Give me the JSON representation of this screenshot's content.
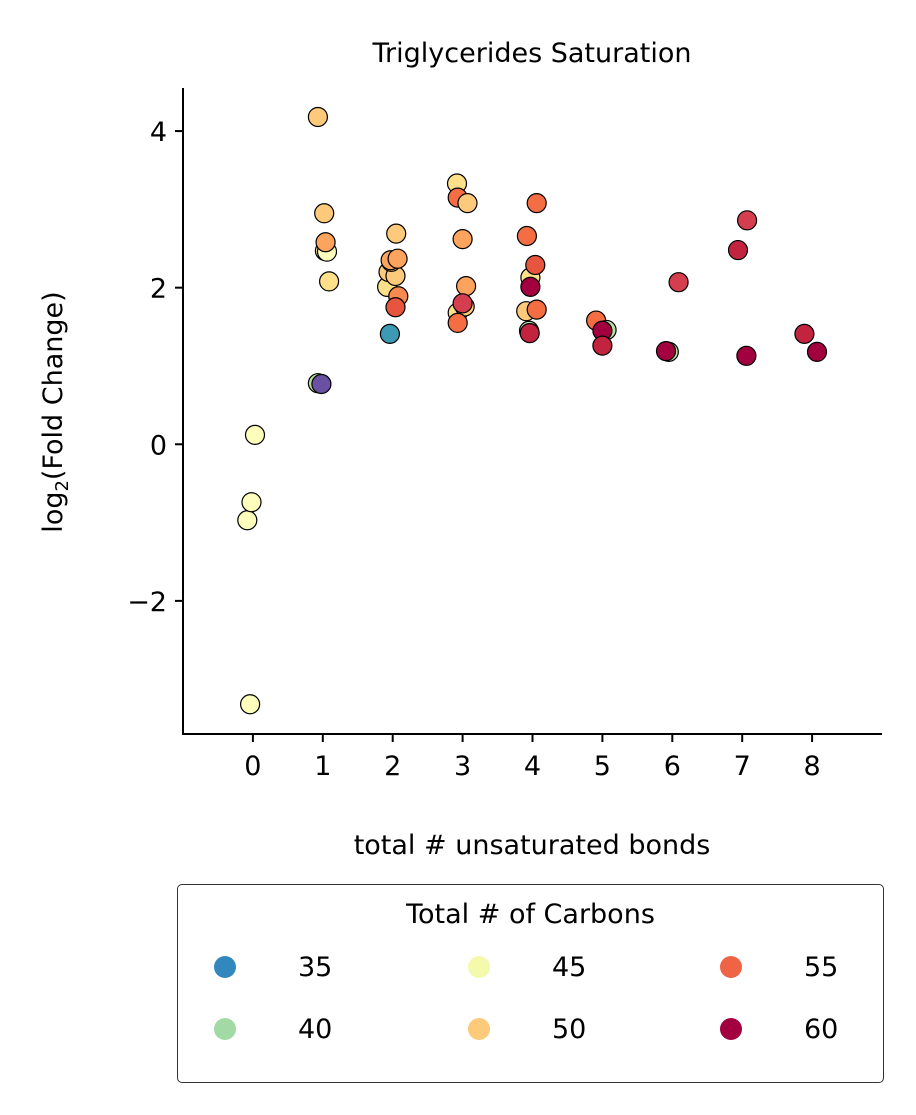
{
  "chart_data": {
    "type": "scatter",
    "title": "Triglycerides Saturation",
    "xlabel": "total # unsaturated bonds",
    "ylabel_main": "log",
    "ylabel_sub": "2",
    "ylabel_rest": "(Fold Change)",
    "xlim": [
      -1,
      9
    ],
    "ylim": [
      -3.7,
      4.55
    ],
    "xticks": [
      0,
      1,
      2,
      3,
      4,
      5,
      6,
      7,
      8
    ],
    "yticks": [
      -2,
      0,
      2,
      4
    ],
    "ytick_labels": [
      "−2",
      "0",
      "2",
      "4"
    ],
    "grid": false,
    "legend": {
      "title": "Total # of Carbons",
      "placement": "below",
      "entries": [
        {
          "label": "35",
          "color": "#3288bd"
        },
        {
          "label": "40",
          "color": "#a2d9a4"
        },
        {
          "label": "45",
          "color": "#f5f9ab"
        },
        {
          "label": "50",
          "color": "#fdc97a"
        },
        {
          "label": "55",
          "color": "#ef6445"
        },
        {
          "label": "60",
          "color": "#a2003f"
        }
      ]
    },
    "points": [
      {
        "x": -0.08,
        "y": -0.97,
        "c": "#fdfebc"
      },
      {
        "x": -0.02,
        "y": -0.74,
        "c": "#fdfebc"
      },
      {
        "x": 0.03,
        "y": 0.12,
        "c": "#fdfebc"
      },
      {
        "x": -0.04,
        "y": -3.32,
        "c": "#fdfebc"
      },
      {
        "x": 0.93,
        "y": 0.78,
        "c": "#b7e2a1"
      },
      {
        "x": 0.98,
        "y": 0.77,
        "c": "#6a51a3"
      },
      {
        "x": 0.93,
        "y": 4.18,
        "c": "#fdc97a"
      },
      {
        "x": 1.02,
        "y": 2.95,
        "c": "#fdc97a"
      },
      {
        "x": 1.03,
        "y": 2.47,
        "c": "#fee08b"
      },
      {
        "x": 1.06,
        "y": 2.46,
        "c": "#fdfebc"
      },
      {
        "x": 1.04,
        "y": 2.58,
        "c": "#fca35d"
      },
      {
        "x": 1.09,
        "y": 2.08,
        "c": "#fee08b"
      },
      {
        "x": 1.96,
        "y": 1.41,
        "c": "#3c9ab2"
      },
      {
        "x": 1.92,
        "y": 2.01,
        "c": "#fee08b"
      },
      {
        "x": 1.94,
        "y": 2.2,
        "c": "#fdc97a"
      },
      {
        "x": 2.04,
        "y": 2.15,
        "c": "#fdc97a"
      },
      {
        "x": 1.98,
        "y": 2.33,
        "c": "#fdc97a"
      },
      {
        "x": 1.97,
        "y": 2.35,
        "c": "#fca35d"
      },
      {
        "x": 2.05,
        "y": 2.69,
        "c": "#fdc97a"
      },
      {
        "x": 2.07,
        "y": 2.37,
        "c": "#fca35d"
      },
      {
        "x": 2.08,
        "y": 1.89,
        "c": "#f88950"
      },
      {
        "x": 2.04,
        "y": 1.75,
        "c": "#e8553f"
      },
      {
        "x": 2.92,
        "y": 3.33,
        "c": "#fee08b"
      },
      {
        "x": 2.93,
        "y": 3.15,
        "c": "#f46d43"
      },
      {
        "x": 3.07,
        "y": 3.08,
        "c": "#fdc97a"
      },
      {
        "x": 3.0,
        "y": 2.62,
        "c": "#fca35d"
      },
      {
        "x": 3.05,
        "y": 2.02,
        "c": "#fca35d"
      },
      {
        "x": 2.93,
        "y": 1.68,
        "c": "#fee08b"
      },
      {
        "x": 3.03,
        "y": 1.76,
        "c": "#fdc97a"
      },
      {
        "x": 3.0,
        "y": 1.8,
        "c": "#d53e4f"
      },
      {
        "x": 2.93,
        "y": 1.55,
        "c": "#f46d43"
      },
      {
        "x": 3.92,
        "y": 2.66,
        "c": "#f46d43"
      },
      {
        "x": 4.06,
        "y": 3.08,
        "c": "#f46d43"
      },
      {
        "x": 3.97,
        "y": 2.13,
        "c": "#fee08b"
      },
      {
        "x": 4.04,
        "y": 2.29,
        "c": "#e8553f"
      },
      {
        "x": 3.97,
        "y": 2.01,
        "c": "#a2003f"
      },
      {
        "x": 3.91,
        "y": 1.7,
        "c": "#fdc97a"
      },
      {
        "x": 4.06,
        "y": 1.72,
        "c": "#f46d43"
      },
      {
        "x": 3.95,
        "y": 1.45,
        "c": "#b7e2a1"
      },
      {
        "x": 3.96,
        "y": 1.42,
        "c": "#c2243f"
      },
      {
        "x": 4.91,
        "y": 1.58,
        "c": "#f46d43"
      },
      {
        "x": 5.06,
        "y": 1.46,
        "c": "#b7e2a1"
      },
      {
        "x": 5.0,
        "y": 1.45,
        "c": "#a2003f"
      },
      {
        "x": 5.0,
        "y": 1.26,
        "c": "#c2243f"
      },
      {
        "x": 5.95,
        "y": 1.18,
        "c": "#b7e2a1"
      },
      {
        "x": 5.91,
        "y": 1.19,
        "c": "#a2003f"
      },
      {
        "x": 6.09,
        "y": 2.07,
        "c": "#d53e4f"
      },
      {
        "x": 6.94,
        "y": 2.48,
        "c": "#c2243f"
      },
      {
        "x": 7.07,
        "y": 2.86,
        "c": "#d53e4f"
      },
      {
        "x": 7.06,
        "y": 1.13,
        "c": "#a2003f"
      },
      {
        "x": 7.89,
        "y": 1.41,
        "c": "#c2243f"
      },
      {
        "x": 8.07,
        "y": 1.18,
        "c": "#a2003f"
      }
    ]
  }
}
